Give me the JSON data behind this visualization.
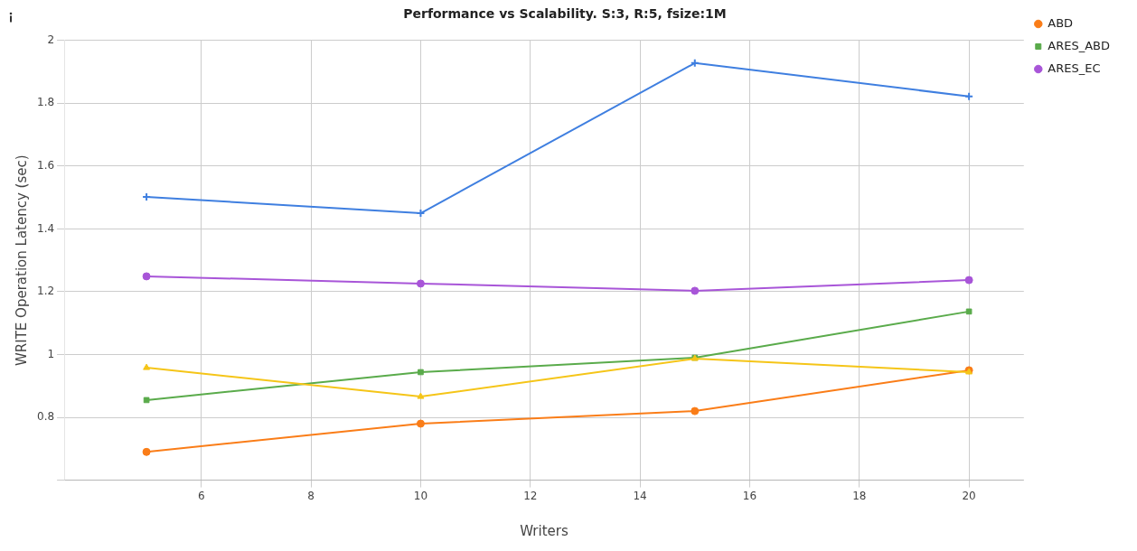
{
  "chart_data": {
    "type": "line",
    "title": "Performance vs Scalability. S:3, R:5, fsize:1M",
    "xlabel": "Writers",
    "ylabel": "WRITE Operation Latency (sec)",
    "x": [
      5,
      10,
      15,
      20
    ],
    "series": [
      {
        "name": "ABD",
        "color": "#fa7d18",
        "marker": "circle",
        "values": [
          0.69,
          0.78,
          0.82,
          0.95
        ]
      },
      {
        "name": "ARES_ABD",
        "color": "#5aab4b",
        "marker": "square",
        "values": [
          0.855,
          0.944,
          0.99,
          1.137
        ]
      },
      {
        "name": "ARES_EC",
        "color": "#a855d8",
        "marker": "circle",
        "values": [
          1.249,
          1.226,
          1.203,
          1.237
        ]
      },
      {
        "color": "#3f7fe0",
        "marker": "cross",
        "values": [
          1.502,
          1.45,
          1.928,
          1.822
        ]
      },
      {
        "color": "#f5c518",
        "marker": "triangle",
        "values": [
          0.958,
          0.866,
          0.987,
          0.944
        ]
      }
    ],
    "xlim": [
      3.5,
      21
    ],
    "xticks": [
      6,
      8,
      10,
      12,
      14,
      16,
      18,
      20
    ],
    "ylim": [
      0.6,
      2
    ],
    "yticks": [
      {
        "value": 0.6,
        "label": null
      },
      0.8,
      1,
      1.2,
      1.4,
      1.6,
      1.8,
      2
    ],
    "grid": true,
    "legend": "top right",
    "line_style": "solid"
  }
}
